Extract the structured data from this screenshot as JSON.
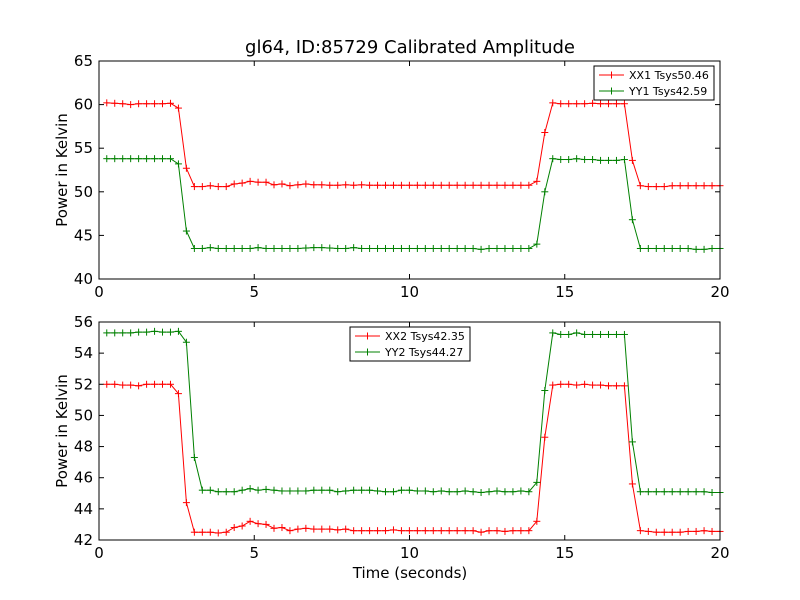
{
  "chart_data": {
    "title": "gl64, ID:85729 Calibrated Amplitude",
    "xlabel": "Time (seconds)",
    "panels": [
      {
        "type": "line",
        "ylabel": "Power in Kelvin",
        "xlim": [
          0,
          20
        ],
        "ylim": [
          40,
          65
        ],
        "xticks": [
          0,
          5,
          10,
          15,
          20
        ],
        "yticks": [
          40,
          45,
          50,
          55,
          60,
          65
        ],
        "legend_position": "top-right",
        "series": [
          {
            "name": "XX1 Tsys50.46",
            "color": "#ff0000",
            "values": [
              60.2,
              60.15,
              60.1,
              60.0,
              60.1,
              60.1,
              60.1,
              60.1,
              60.15,
              59.6,
              52.7,
              50.6,
              50.6,
              50.7,
              50.6,
              50.6,
              50.9,
              51.0,
              51.2,
              51.1,
              51.1,
              50.8,
              50.9,
              50.7,
              50.8,
              50.9,
              50.8,
              50.8,
              50.75,
              50.75,
              50.8,
              50.75,
              50.8,
              50.75,
              50.75,
              50.75,
              50.75,
              50.75,
              50.75,
              50.75,
              50.75,
              50.75,
              50.75,
              50.75,
              50.75,
              50.75,
              50.75,
              50.75,
              50.75,
              50.75,
              50.75,
              50.75,
              50.75,
              50.75,
              51.2,
              56.8,
              60.2,
              60.1,
              60.1,
              60.1,
              60.1,
              60.15,
              60.1,
              60.1,
              60.1,
              60.1,
              53.6,
              50.7,
              50.6,
              50.6,
              50.6,
              50.7,
              50.7,
              50.7,
              50.7,
              50.7,
              50.7,
              50.7
            ]
          },
          {
            "name": "YY1 Tsys42.59",
            "color": "#008000",
            "values": [
              53.8,
              53.8,
              53.8,
              53.8,
              53.8,
              53.8,
              53.8,
              53.8,
              53.8,
              53.2,
              45.5,
              43.5,
              43.5,
              43.6,
              43.5,
              43.5,
              43.5,
              43.5,
              43.5,
              43.6,
              43.5,
              43.5,
              43.5,
              43.5,
              43.5,
              43.55,
              43.6,
              43.6,
              43.55,
              43.5,
              43.5,
              43.6,
              43.5,
              43.5,
              43.5,
              43.5,
              43.5,
              43.5,
              43.5,
              43.5,
              43.5,
              43.5,
              43.5,
              43.5,
              43.5,
              43.5,
              43.5,
              43.4,
              43.5,
              43.5,
              43.5,
              43.5,
              43.5,
              43.5,
              44.0,
              50.0,
              53.8,
              53.7,
              53.7,
              53.8,
              53.7,
              53.7,
              53.6,
              53.6,
              53.6,
              53.7,
              46.8,
              43.5,
              43.5,
              43.5,
              43.5,
              43.5,
              43.5,
              43.5,
              43.4,
              43.4,
              43.5,
              43.5
            ]
          }
        ]
      },
      {
        "type": "line",
        "ylabel": "Power in Kelvin",
        "xlim": [
          0,
          20
        ],
        "ylim": [
          42,
          56
        ],
        "xticks": [
          0,
          5,
          10,
          15,
          20
        ],
        "yticks": [
          42,
          44,
          46,
          48,
          50,
          52,
          54,
          56
        ],
        "legend_position": "top-center",
        "series": [
          {
            "name": "XX2 Tsys42.35",
            "color": "#ff0000",
            "values": [
              52.0,
              52.0,
              51.95,
              51.95,
              51.9,
              52.0,
              52.0,
              52.0,
              52.0,
              51.4,
              44.4,
              42.5,
              42.5,
              42.5,
              42.45,
              42.5,
              42.8,
              42.9,
              43.2,
              43.05,
              43.0,
              42.75,
              42.8,
              42.6,
              42.7,
              42.75,
              42.7,
              42.7,
              42.7,
              42.65,
              42.7,
              42.6,
              42.6,
              42.6,
              42.6,
              42.6,
              42.65,
              42.6,
              42.6,
              42.6,
              42.6,
              42.6,
              42.6,
              42.6,
              42.6,
              42.6,
              42.6,
              42.5,
              42.6,
              42.6,
              42.55,
              42.6,
              42.6,
              42.6,
              43.2,
              48.6,
              51.95,
              52.0,
              52.0,
              51.95,
              52.0,
              51.95,
              51.95,
              51.9,
              51.9,
              51.9,
              45.6,
              42.6,
              42.55,
              42.5,
              42.5,
              42.5,
              42.5,
              42.55,
              42.55,
              42.6,
              42.55,
              42.55
            ]
          },
          {
            "name": "YY2 Tsys44.27",
            "color": "#008000",
            "values": [
              55.3,
              55.3,
              55.3,
              55.3,
              55.35,
              55.35,
              55.4,
              55.35,
              55.35,
              55.4,
              54.7,
              47.3,
              45.2,
              45.2,
              45.1,
              45.1,
              45.1,
              45.2,
              45.3,
              45.2,
              45.25,
              45.2,
              45.15,
              45.15,
              45.15,
              45.15,
              45.2,
              45.2,
              45.2,
              45.1,
              45.15,
              45.2,
              45.2,
              45.2,
              45.15,
              45.1,
              45.1,
              45.2,
              45.2,
              45.15,
              45.15,
              45.1,
              45.15,
              45.1,
              45.1,
              45.15,
              45.1,
              45.05,
              45.1,
              45.15,
              45.1,
              45.1,
              45.15,
              45.1,
              45.7,
              51.6,
              55.3,
              55.2,
              55.2,
              55.3,
              55.2,
              55.2,
              55.2,
              55.2,
              55.2,
              55.2,
              48.3,
              45.1,
              45.1,
              45.1,
              45.1,
              45.1,
              45.1,
              45.1,
              45.1,
              45.1,
              45.05,
              45.05
            ]
          }
        ]
      }
    ]
  }
}
